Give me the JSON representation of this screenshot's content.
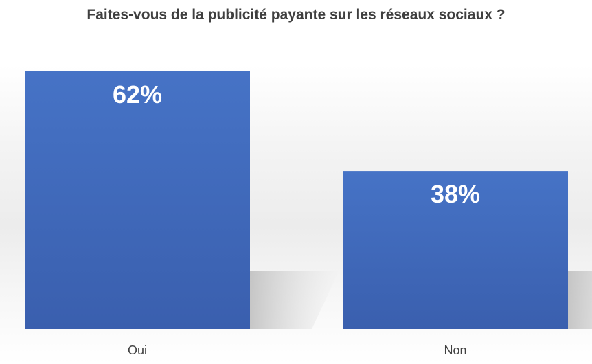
{
  "chart_data": {
    "type": "bar",
    "title": "Faites-vous de la publicité payante sur les réseaux sociaux ?",
    "categories": [
      "Oui",
      "Non"
    ],
    "values": [
      62,
      38
    ],
    "data_labels": [
      "62%",
      "38%"
    ],
    "xlabel": "",
    "ylabel": "",
    "ylim": [
      0,
      70
    ],
    "grid": false,
    "legend": "none",
    "bar_color": "#4472C4"
  }
}
